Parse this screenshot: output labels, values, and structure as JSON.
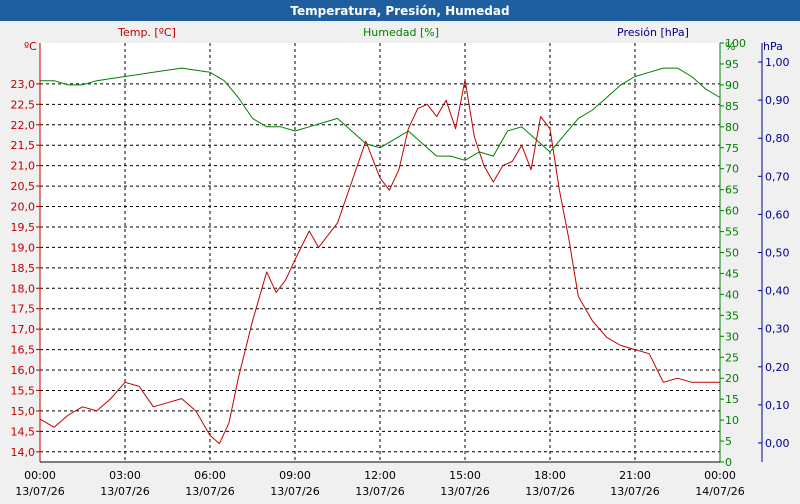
{
  "window": {
    "title": "Temperatura, Presión, Humedad"
  },
  "chart_data": {
    "type": "line",
    "title": "Temperatura, Presión, Humedad",
    "grid": true,
    "legend_placement": "top",
    "axes": {
      "x": {
        "range": [
          "13/07/26 00:00",
          "14/07/26 00:00"
        ],
        "ticks": [
          {
            "time": "00:00",
            "date": "13/07/26"
          },
          {
            "time": "03:00",
            "date": "13/07/26"
          },
          {
            "time": "06:00",
            "date": "13/07/26"
          },
          {
            "time": "09:00",
            "date": "13/07/26"
          },
          {
            "time": "12:00",
            "date": "13/07/26"
          },
          {
            "time": "15:00",
            "date": "13/07/26"
          },
          {
            "time": "18:00",
            "date": "13/07/26"
          },
          {
            "time": "21:00",
            "date": "13/07/26"
          },
          {
            "time": "00:00",
            "date": "14/07/26"
          }
        ]
      },
      "temp": {
        "unit": "ºC",
        "range": [
          13.75,
          24.0
        ],
        "color": "#c00000",
        "ticks": [
          "23,0",
          "22,5",
          "22,0",
          "21,5",
          "21,0",
          "20,5",
          "20,0",
          "19,5",
          "19,0",
          "18,5",
          "18,0",
          "17,5",
          "17,0",
          "16,5",
          "16,0",
          "15,5",
          "15,0",
          "14,5",
          "14,0"
        ]
      },
      "humidity": {
        "unit": "%",
        "range": [
          0,
          100
        ],
        "color": "#008000",
        "ticks": [
          "100",
          "95",
          "90",
          "85",
          "80",
          "75",
          "70",
          "65",
          "60",
          "55",
          "50",
          "45",
          "40",
          "35",
          "30",
          "25",
          "20",
          "15",
          "10",
          "5",
          "0"
        ]
      },
      "pressure": {
        "unit": "hPa",
        "range": [
          -0.05,
          1.05
        ],
        "color": "#00008b",
        "ticks": [
          "1,00",
          "0,90",
          "0,80",
          "0,70",
          "0,60",
          "0,50",
          "0,40",
          "0,30",
          "0,20",
          "0,10",
          "0,00"
        ]
      }
    },
    "series": [
      {
        "name": "Temp. [ºC]",
        "axis": "temp",
        "color": "#c00000",
        "x": [
          "13/07/26 00:00",
          "13/07/26 00:30",
          "13/07/26 01:00",
          "13/07/26 01:30",
          "13/07/26 02:00",
          "13/07/26 02:30",
          "13/07/26 03:00",
          "13/07/26 03:30",
          "13/07/26 04:00",
          "13/07/26 04:30",
          "13/07/26 05:00",
          "13/07/26 05:30",
          "13/07/26 06:00",
          "13/07/26 06:20",
          "13/07/26 06:40",
          "13/07/26 07:00",
          "13/07/26 07:30",
          "13/07/26 08:00",
          "13/07/26 08:20",
          "13/07/26 08:40",
          "13/07/26 09:00",
          "13/07/26 09:30",
          "13/07/26 09:50",
          "13/07/26 10:10",
          "13/07/26 10:30",
          "13/07/26 11:00",
          "13/07/26 11:30",
          "13/07/26 12:00",
          "13/07/26 12:20",
          "13/07/26 12:40",
          "13/07/26 13:00",
          "13/07/26 13:20",
          "13/07/26 13:40",
          "13/07/26 14:00",
          "13/07/26 14:20",
          "13/07/26 14:40",
          "13/07/26 15:00",
          "13/07/26 15:20",
          "13/07/26 15:40",
          "13/07/26 16:00",
          "13/07/26 16:20",
          "13/07/26 16:40",
          "13/07/26 17:00",
          "13/07/26 17:20",
          "13/07/26 17:40",
          "13/07/26 18:00",
          "13/07/26 18:20",
          "13/07/26 18:40",
          "13/07/26 19:00",
          "13/07/26 19:30",
          "13/07/26 20:00",
          "13/07/26 20:30",
          "13/07/26 21:00",
          "13/07/26 21:30",
          "13/07/26 22:00",
          "13/07/26 22:30",
          "13/07/26 23:00",
          "13/07/26 23:30",
          "14/07/26 00:00"
        ],
        "values": [
          14.8,
          14.6,
          14.9,
          15.1,
          15.0,
          15.3,
          15.7,
          15.6,
          15.1,
          15.2,
          15.3,
          15.0,
          14.4,
          14.2,
          14.7,
          15.8,
          17.2,
          18.4,
          17.9,
          18.2,
          18.7,
          19.4,
          19.0,
          19.3,
          19.6,
          20.6,
          21.6,
          20.7,
          20.4,
          20.9,
          21.9,
          22.4,
          22.5,
          22.2,
          22.6,
          21.9,
          23.1,
          21.7,
          21.0,
          20.6,
          21.0,
          21.1,
          21.5,
          20.9,
          22.2,
          21.9,
          20.4,
          19.2,
          17.8,
          17.2,
          16.8,
          16.6,
          16.5,
          16.4,
          15.7,
          15.8,
          15.7,
          15.7,
          15.7
        ]
      },
      {
        "name": "Humedad [%]",
        "axis": "humidity",
        "color": "#008000",
        "x": [
          "13/07/26 00:00",
          "13/07/26 00:30",
          "13/07/26 01:00",
          "13/07/26 01:30",
          "13/07/26 02:00",
          "13/07/26 03:00",
          "13/07/26 04:00",
          "13/07/26 05:00",
          "13/07/26 06:00",
          "13/07/26 06:30",
          "13/07/26 07:00",
          "13/07/26 07:30",
          "13/07/26 08:00",
          "13/07/26 08:30",
          "13/07/26 09:00",
          "13/07/26 09:30",
          "13/07/26 10:00",
          "13/07/26 10:30",
          "13/07/26 11:00",
          "13/07/26 11:30",
          "13/07/26 12:00",
          "13/07/26 12:30",
          "13/07/26 13:00",
          "13/07/26 13:30",
          "13/07/26 14:00",
          "13/07/26 14:30",
          "13/07/26 15:00",
          "13/07/26 15:30",
          "13/07/26 16:00",
          "13/07/26 16:30",
          "13/07/26 17:00",
          "13/07/26 17:30",
          "13/07/26 18:00",
          "13/07/26 18:30",
          "13/07/26 19:00",
          "13/07/26 19:30",
          "13/07/26 20:00",
          "13/07/26 20:30",
          "13/07/26 21:00",
          "13/07/26 21:30",
          "13/07/26 22:00",
          "13/07/26 22:30",
          "13/07/26 23:00",
          "13/07/26 23:30",
          "14/07/26 00:00"
        ],
        "values": [
          91,
          91,
          90,
          90,
          91,
          92,
          93,
          94,
          93,
          91,
          87,
          82,
          80,
          80,
          79,
          80,
          81,
          82,
          79,
          76,
          75,
          77,
          79,
          76,
          73,
          73,
          72,
          74,
          73,
          79,
          80,
          77,
          74,
          78,
          82,
          84,
          87,
          90,
          92,
          93,
          94,
          94,
          92,
          89,
          87
        ]
      },
      {
        "name": "Presión [hPa]",
        "axis": "pressure",
        "color": "#00008b",
        "x": [],
        "values": []
      }
    ]
  }
}
